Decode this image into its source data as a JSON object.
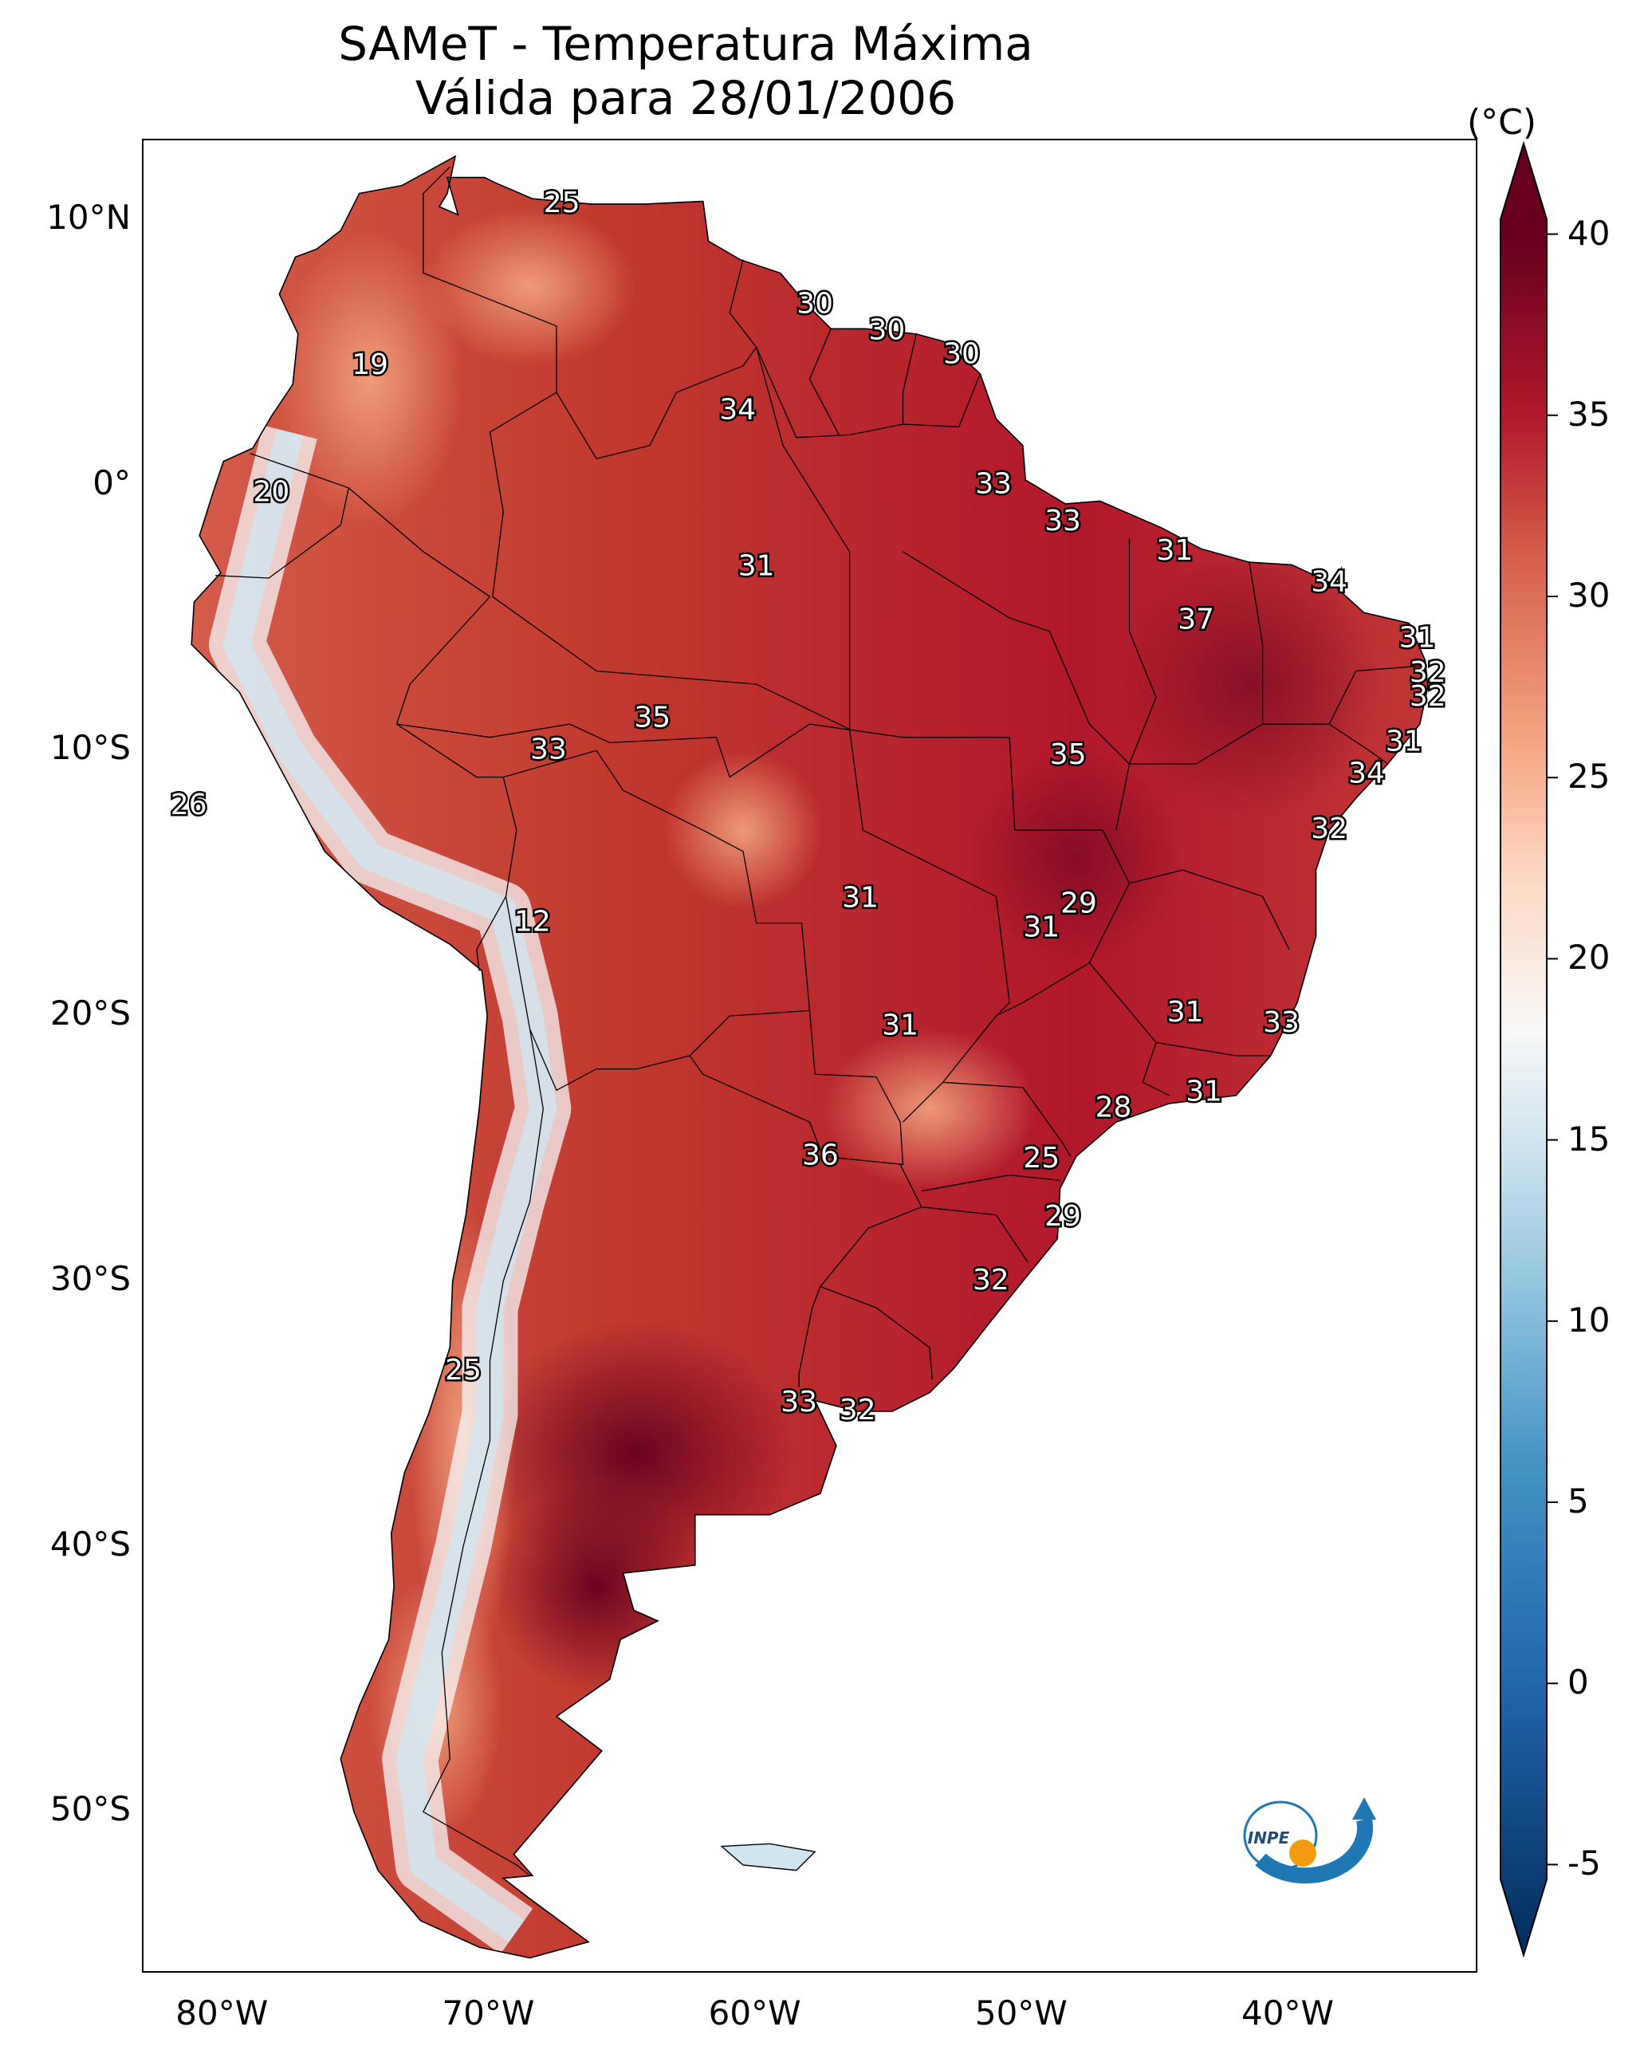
{
  "title": {
    "line1": "SAMeT - Temperatura Máxima",
    "line2": "Válida para 28/01/2006"
  },
  "map": {
    "extent": {
      "lon": [
        -83,
        -33
      ],
      "lat": [
        -56,
        13
      ]
    },
    "lat_ticks": [
      {
        "lat": 10,
        "label": "10°N"
      },
      {
        "lat": 0,
        "label": "0°"
      },
      {
        "lat": -10,
        "label": "10°S"
      },
      {
        "lat": -20,
        "label": "20°S"
      },
      {
        "lat": -30,
        "label": "30°S"
      },
      {
        "lat": -40,
        "label": "40°S"
      },
      {
        "lat": -50,
        "label": "50°S"
      }
    ],
    "lon_ticks": [
      {
        "lon": -80,
        "label": "80°W"
      },
      {
        "lon": -70,
        "label": "70°W"
      },
      {
        "lon": -60,
        "label": "60°W"
      },
      {
        "lon": -50,
        "label": "50°W"
      },
      {
        "lon": -40,
        "label": "40°W"
      }
    ],
    "station_values": [
      {
        "lon": -67.3,
        "lat": 10.6,
        "label": "25"
      },
      {
        "lon": -74.5,
        "lat": 4.5,
        "label": "19"
      },
      {
        "lon": -78.2,
        "lat": -0.3,
        "label": "20"
      },
      {
        "lon": -81.3,
        "lat": -12.1,
        "label": "26"
      },
      {
        "lon": -68.4,
        "lat": -16.5,
        "label": "12"
      },
      {
        "lon": -71.0,
        "lat": -33.4,
        "label": "25"
      },
      {
        "lon": -57.8,
        "lat": 6.8,
        "label": "30"
      },
      {
        "lon": -55.1,
        "lat": 5.8,
        "label": "30"
      },
      {
        "lon": -52.3,
        "lat": 4.9,
        "label": "30"
      },
      {
        "lon": -60.7,
        "lat": 2.8,
        "label": "34"
      },
      {
        "lon": -51.1,
        "lat": 0.0,
        "label": "33"
      },
      {
        "lon": -48.5,
        "lat": -1.4,
        "label": "33"
      },
      {
        "lon": -44.3,
        "lat": -2.5,
        "label": "31"
      },
      {
        "lon": -38.5,
        "lat": -3.7,
        "label": "34"
      },
      {
        "lon": -43.5,
        "lat": -5.1,
        "label": "37"
      },
      {
        "lon": -35.2,
        "lat": -5.8,
        "label": "31"
      },
      {
        "lon": -34.8,
        "lat": -7.1,
        "label": "32"
      },
      {
        "lon": -34.8,
        "lat": -8.0,
        "label": "32"
      },
      {
        "lon": -35.7,
        "lat": -9.7,
        "label": "31"
      },
      {
        "lon": -37.1,
        "lat": -10.9,
        "label": "34"
      },
      {
        "lon": -38.5,
        "lat": -13.0,
        "label": "32"
      },
      {
        "lon": -60.0,
        "lat": -3.1,
        "label": "31"
      },
      {
        "lon": -63.9,
        "lat": -8.8,
        "label": "35"
      },
      {
        "lon": -67.8,
        "lat": -10.0,
        "label": "33"
      },
      {
        "lon": -48.3,
        "lat": -10.2,
        "label": "35"
      },
      {
        "lon": -56.1,
        "lat": -15.6,
        "label": "31"
      },
      {
        "lon": -47.9,
        "lat": -15.8,
        "label": "29"
      },
      {
        "lon": -49.3,
        "lat": -16.7,
        "label": "31"
      },
      {
        "lon": -43.9,
        "lat": -19.9,
        "label": "31"
      },
      {
        "lon": -40.3,
        "lat": -20.3,
        "label": "33"
      },
      {
        "lon": -54.6,
        "lat": -20.4,
        "label": "31"
      },
      {
        "lon": -43.2,
        "lat": -22.9,
        "label": "31"
      },
      {
        "lon": -46.6,
        "lat": -23.5,
        "label": "28"
      },
      {
        "lon": -57.6,
        "lat": -25.3,
        "label": "36"
      },
      {
        "lon": -49.3,
        "lat": -25.4,
        "label": "25"
      },
      {
        "lon": -48.5,
        "lat": -27.6,
        "label": "29"
      },
      {
        "lon": -51.2,
        "lat": -30.0,
        "label": "32"
      },
      {
        "lon": -58.4,
        "lat": -34.6,
        "label": "33"
      },
      {
        "lon": -56.2,
        "lat": -34.9,
        "label": "32"
      }
    ],
    "logo": {
      "text": "INPE"
    }
  },
  "colorbar": {
    "unit": "(°C)",
    "min": -7.5,
    "max": 42.5,
    "ticks": [
      -5,
      0,
      5,
      10,
      15,
      20,
      25,
      30,
      35,
      40
    ],
    "tick_labels": [
      "-5",
      "0",
      "5",
      "10",
      "15",
      "20",
      "25",
      "30",
      "35",
      "40"
    ],
    "stops": [
      {
        "v": -7,
        "c": "#053061"
      },
      {
        "v": 0,
        "c": "#2166ac"
      },
      {
        "v": 6,
        "c": "#4393c3"
      },
      {
        "v": 11,
        "c": "#92c5de"
      },
      {
        "v": 15,
        "c": "#d1e5f0"
      },
      {
        "v": 18,
        "c": "#f7f7f7"
      },
      {
        "v": 22,
        "c": "#fddbc7"
      },
      {
        "v": 26,
        "c": "#f4a582"
      },
      {
        "v": 31,
        "c": "#d6604d"
      },
      {
        "v": 35,
        "c": "#b2182b"
      },
      {
        "v": 40,
        "c": "#67001f"
      }
    ]
  }
}
